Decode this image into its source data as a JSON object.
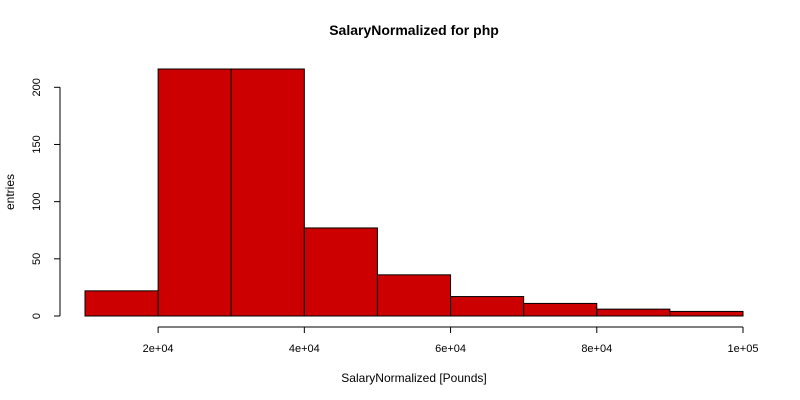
{
  "chart_data": {
    "type": "bar",
    "title": "SalaryNormalized for php",
    "xlabel": "SalaryNormalized [Pounds]",
    "ylabel": "entries",
    "bin_edges": [
      10000,
      20000,
      30000,
      40000,
      50000,
      60000,
      70000,
      80000,
      90000,
      100000
    ],
    "values": [
      22,
      216,
      216,
      77,
      36,
      17,
      11,
      6,
      4
    ],
    "xlim": [
      10000,
      100000
    ],
    "ylim": [
      0,
      216
    ],
    "x_ticks": [
      20000,
      40000,
      60000,
      80000,
      100000
    ],
    "x_tick_labels": [
      "2e+04",
      "4e+04",
      "6e+04",
      "8e+04",
      "1e+05"
    ],
    "y_ticks": [
      0,
      50,
      100,
      150,
      200
    ],
    "y_tick_labels": [
      "0",
      "50",
      "100",
      "150",
      "200"
    ],
    "bar_color": "#cc0000",
    "grid": false,
    "legend": "none"
  }
}
